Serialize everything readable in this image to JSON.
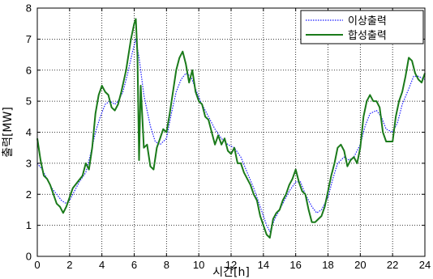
{
  "chart_data": {
    "type": "line",
    "xlabel": "시간[h]",
    "ylabel": "출력[MW]",
    "xlim": [
      0,
      24
    ],
    "ylim": [
      0,
      8
    ],
    "xticks": [
      0,
      2,
      4,
      6,
      8,
      10,
      12,
      14,
      16,
      18,
      20,
      22,
      24
    ],
    "yticks": [
      0,
      1,
      2,
      3,
      4,
      5,
      6,
      7,
      8
    ],
    "grid": true,
    "grid_style": "dotted",
    "legend_position": "top-right",
    "series": [
      {
        "name": "이상출력",
        "color": "#1a1aff",
        "style": "dotted",
        "points": [
          [
            0.0,
            3.0
          ],
          [
            0.3,
            2.8
          ],
          [
            0.6,
            2.5
          ],
          [
            0.9,
            2.2
          ],
          [
            1.2,
            2.0
          ],
          [
            1.5,
            1.8
          ],
          [
            1.8,
            1.7
          ],
          [
            2.0,
            1.8
          ],
          [
            2.3,
            2.1
          ],
          [
            2.6,
            2.4
          ],
          [
            3.0,
            2.7
          ],
          [
            3.3,
            3.3
          ],
          [
            3.6,
            4.0
          ],
          [
            3.9,
            4.5
          ],
          [
            4.2,
            4.9
          ],
          [
            4.5,
            5.0
          ],
          [
            4.8,
            4.9
          ],
          [
            5.0,
            5.0
          ],
          [
            5.3,
            5.3
          ],
          [
            5.6,
            5.9
          ],
          [
            5.9,
            6.6
          ],
          [
            6.1,
            7.0
          ],
          [
            6.3,
            6.4
          ],
          [
            6.6,
            5.2
          ],
          [
            7.0,
            4.2
          ],
          [
            7.3,
            3.7
          ],
          [
            7.6,
            3.6
          ],
          [
            8.0,
            3.8
          ],
          [
            8.3,
            4.6
          ],
          [
            8.6,
            5.3
          ],
          [
            8.9,
            5.7
          ],
          [
            9.2,
            5.9
          ],
          [
            9.5,
            5.8
          ],
          [
            9.8,
            5.4
          ],
          [
            10.1,
            5.0
          ],
          [
            10.4,
            4.7
          ],
          [
            10.7,
            4.4
          ],
          [
            11.0,
            4.1
          ],
          [
            11.4,
            3.8
          ],
          [
            11.8,
            3.6
          ],
          [
            12.2,
            3.5
          ],
          [
            12.6,
            3.2
          ],
          [
            13.0,
            2.7
          ],
          [
            13.4,
            2.2
          ],
          [
            13.8,
            1.6
          ],
          [
            14.2,
            1.0
          ],
          [
            14.4,
            0.8
          ],
          [
            14.7,
            1.2
          ],
          [
            15.0,
            1.5
          ],
          [
            15.3,
            1.8
          ],
          [
            15.6,
            2.1
          ],
          [
            16.0,
            2.4
          ],
          [
            16.3,
            2.4
          ],
          [
            16.6,
            2.0
          ],
          [
            17.0,
            1.6
          ],
          [
            17.3,
            1.4
          ],
          [
            17.6,
            1.5
          ],
          [
            18.0,
            1.9
          ],
          [
            18.3,
            2.5
          ],
          [
            18.6,
            3.0
          ],
          [
            19.0,
            3.2
          ],
          [
            19.3,
            3.1
          ],
          [
            19.6,
            3.2
          ],
          [
            20.0,
            3.6
          ],
          [
            20.3,
            4.2
          ],
          [
            20.6,
            4.6
          ],
          [
            21.0,
            4.7
          ],
          [
            21.3,
            4.5
          ],
          [
            21.6,
            4.1
          ],
          [
            22.0,
            4.0
          ],
          [
            22.3,
            4.3
          ],
          [
            22.6,
            4.9
          ],
          [
            23.0,
            5.4
          ],
          [
            23.3,
            5.8
          ],
          [
            23.6,
            5.8
          ],
          [
            24.0,
            5.7
          ]
        ]
      },
      {
        "name": "합성출력",
        "color": "#1a7a1a",
        "style": "solid",
        "points": [
          [
            0.0,
            3.8
          ],
          [
            0.2,
            3.1
          ],
          [
            0.4,
            2.6
          ],
          [
            0.6,
            2.5
          ],
          [
            0.8,
            2.3
          ],
          [
            1.0,
            2.0
          ],
          [
            1.2,
            1.7
          ],
          [
            1.4,
            1.6
          ],
          [
            1.6,
            1.4
          ],
          [
            1.8,
            1.6
          ],
          [
            2.0,
            1.9
          ],
          [
            2.2,
            2.2
          ],
          [
            2.5,
            2.4
          ],
          [
            2.8,
            2.6
          ],
          [
            3.0,
            3.0
          ],
          [
            3.2,
            2.8
          ],
          [
            3.4,
            3.5
          ],
          [
            3.6,
            4.6
          ],
          [
            3.8,
            5.2
          ],
          [
            4.0,
            5.5
          ],
          [
            4.2,
            5.3
          ],
          [
            4.4,
            5.2
          ],
          [
            4.6,
            4.8
          ],
          [
            4.8,
            4.7
          ],
          [
            5.0,
            4.9
          ],
          [
            5.2,
            5.3
          ],
          [
            5.5,
            6.0
          ],
          [
            5.8,
            7.0
          ],
          [
            6.0,
            7.5
          ],
          [
            6.1,
            7.65
          ],
          [
            6.2,
            6.5
          ],
          [
            6.3,
            3.1
          ],
          [
            6.4,
            5.5
          ],
          [
            6.5,
            4.5
          ],
          [
            6.6,
            3.5
          ],
          [
            6.8,
            3.6
          ],
          [
            7.0,
            2.9
          ],
          [
            7.2,
            2.8
          ],
          [
            7.4,
            3.5
          ],
          [
            7.6,
            3.8
          ],
          [
            7.8,
            4.1
          ],
          [
            8.0,
            4.0
          ],
          [
            8.2,
            4.6
          ],
          [
            8.4,
            5.3
          ],
          [
            8.6,
            6.0
          ],
          [
            8.8,
            6.4
          ],
          [
            9.0,
            6.6
          ],
          [
            9.2,
            6.2
          ],
          [
            9.4,
            5.6
          ],
          [
            9.6,
            6.0
          ],
          [
            9.8,
            5.3
          ],
          [
            10.0,
            5.0
          ],
          [
            10.2,
            4.9
          ],
          [
            10.4,
            4.5
          ],
          [
            10.6,
            4.4
          ],
          [
            10.8,
            4.0
          ],
          [
            11.0,
            3.6
          ],
          [
            11.2,
            3.9
          ],
          [
            11.4,
            3.6
          ],
          [
            11.6,
            3.8
          ],
          [
            11.8,
            3.4
          ],
          [
            12.0,
            3.3
          ],
          [
            12.2,
            3.5
          ],
          [
            12.4,
            3.0
          ],
          [
            12.6,
            3.0
          ],
          [
            12.8,
            2.7
          ],
          [
            13.0,
            2.5
          ],
          [
            13.2,
            2.3
          ],
          [
            13.4,
            2.0
          ],
          [
            13.6,
            1.8
          ],
          [
            13.8,
            1.3
          ],
          [
            14.0,
            1.0
          ],
          [
            14.2,
            0.7
          ],
          [
            14.4,
            0.6
          ],
          [
            14.6,
            1.2
          ],
          [
            14.8,
            1.4
          ],
          [
            15.0,
            1.5
          ],
          [
            15.2,
            1.8
          ],
          [
            15.4,
            2.0
          ],
          [
            15.6,
            2.3
          ],
          [
            15.8,
            2.5
          ],
          [
            16.0,
            2.8
          ],
          [
            16.2,
            2.4
          ],
          [
            16.4,
            2.1
          ],
          [
            16.6,
            2.0
          ],
          [
            16.8,
            1.5
          ],
          [
            17.0,
            1.1
          ],
          [
            17.2,
            1.1
          ],
          [
            17.4,
            1.2
          ],
          [
            17.6,
            1.3
          ],
          [
            17.8,
            1.6
          ],
          [
            18.0,
            2.1
          ],
          [
            18.2,
            2.6
          ],
          [
            18.4,
            3.0
          ],
          [
            18.6,
            3.5
          ],
          [
            18.8,
            3.6
          ],
          [
            19.0,
            3.4
          ],
          [
            19.2,
            2.9
          ],
          [
            19.4,
            3.1
          ],
          [
            19.6,
            3.2
          ],
          [
            19.8,
            3.0
          ],
          [
            20.0,
            3.5
          ],
          [
            20.2,
            4.5
          ],
          [
            20.4,
            5.0
          ],
          [
            20.6,
            5.2
          ],
          [
            20.8,
            5.0
          ],
          [
            21.0,
            5.0
          ],
          [
            21.2,
            4.8
          ],
          [
            21.4,
            4.0
          ],
          [
            21.6,
            3.7
          ],
          [
            21.8,
            3.7
          ],
          [
            22.0,
            3.7
          ],
          [
            22.2,
            4.5
          ],
          [
            22.4,
            5.0
          ],
          [
            22.6,
            5.3
          ],
          [
            22.8,
            5.8
          ],
          [
            23.0,
            6.4
          ],
          [
            23.2,
            6.3
          ],
          [
            23.4,
            5.9
          ],
          [
            23.6,
            5.7
          ],
          [
            23.8,
            5.6
          ],
          [
            24.0,
            5.9
          ]
        ]
      }
    ]
  }
}
